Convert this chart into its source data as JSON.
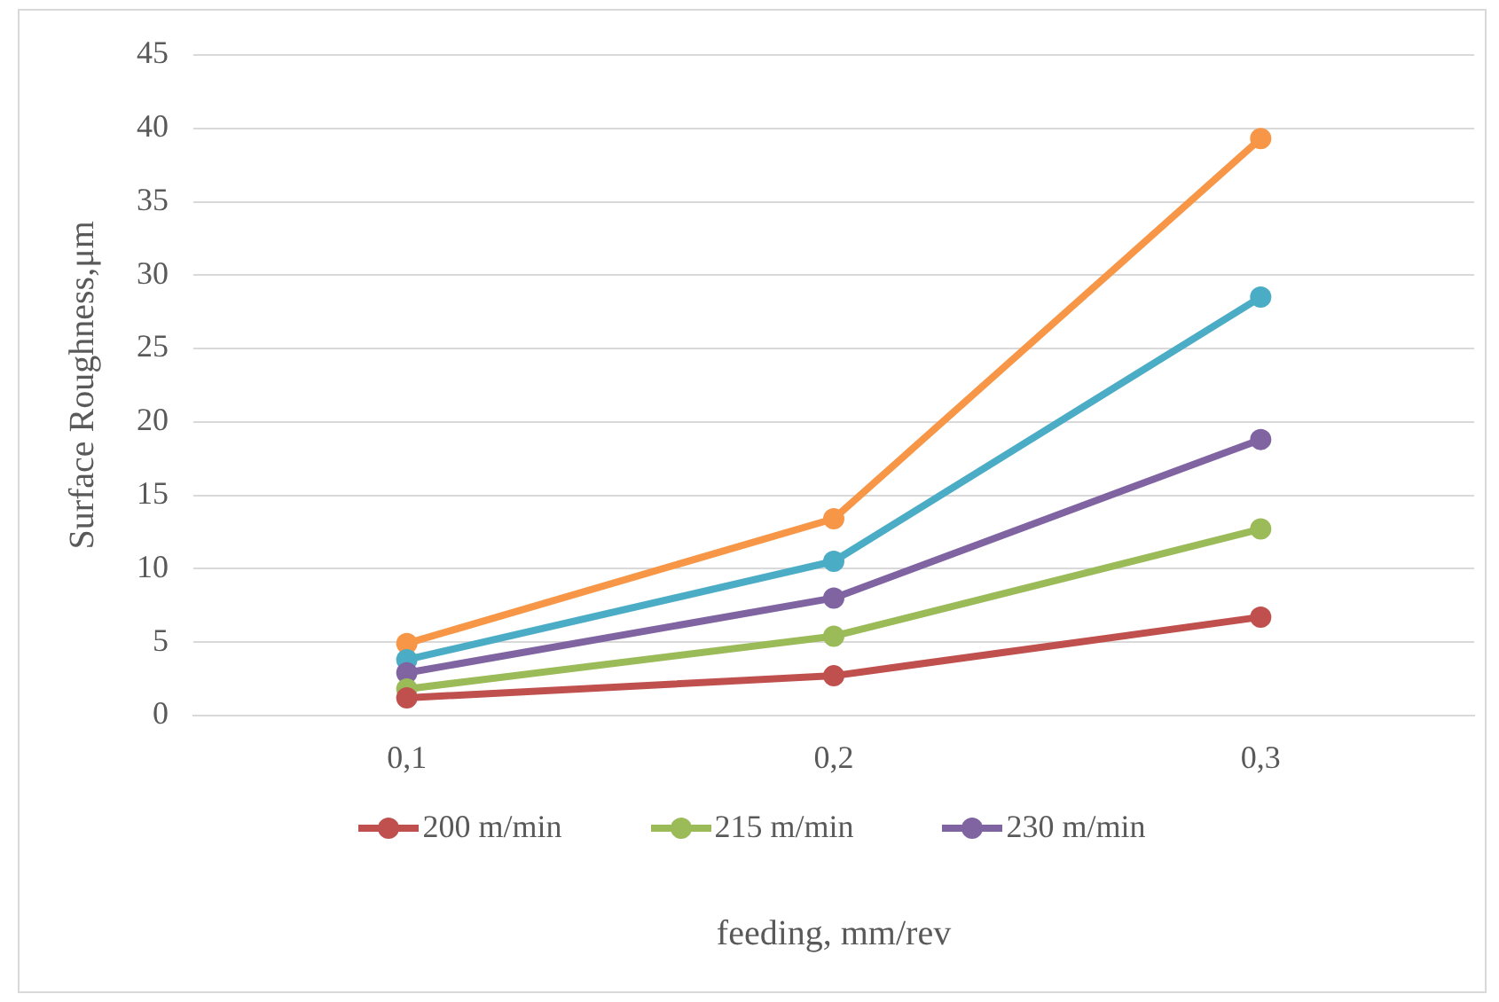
{
  "chart_data": {
    "type": "line",
    "xlabel": "feeding, mm/rev",
    "ylabel": "Surface Roughness,μm",
    "categories": [
      "0,1",
      "0,2",
      "0,3"
    ],
    "series": [
      {
        "name": "200 m/min",
        "color": "#c0504d",
        "values": [
          1.2,
          2.7,
          6.7
        ]
      },
      {
        "name": "215 m/min",
        "color": "#9bbb59",
        "values": [
          1.8,
          5.4,
          12.7
        ]
      },
      {
        "name": "230 m/min",
        "color": "#8064a2",
        "values": [
          2.9,
          8.0,
          18.8
        ]
      },
      {
        "color": "#4bacc6",
        "values": [
          3.8,
          10.5,
          28.5
        ]
      },
      {
        "color": "#f79646",
        "values": [
          4.9,
          13.4,
          39.3
        ]
      }
    ],
    "ylim": [
      0,
      45
    ],
    "yticks": [
      0,
      5,
      10,
      15,
      20,
      25,
      30,
      35,
      40,
      45
    ],
    "grid": "y",
    "legend": "bottom",
    "marker": "circle",
    "line_style": "solid"
  }
}
